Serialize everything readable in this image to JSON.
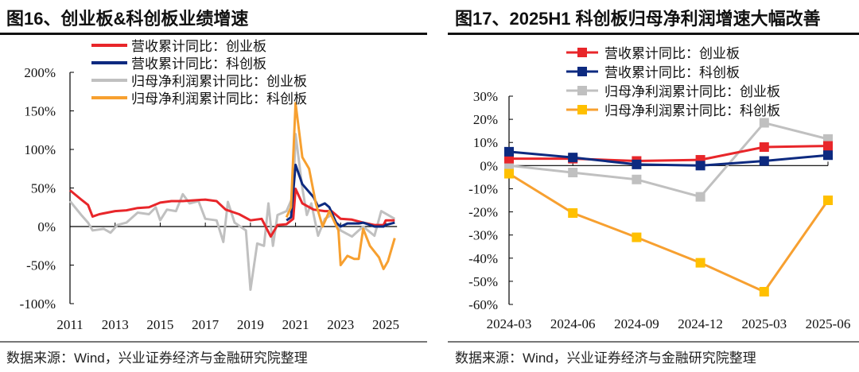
{
  "left": {
    "title": "图16、创业板&科创板业绩增速",
    "source": "数据来源：Wind，兴业证券经济与金融研究院整理"
  },
  "right": {
    "title": "图17、2025H1 科创板归母净利润增速大幅改善",
    "source": "数据来源：Wind，兴业证券经济与金融研究院整理"
  },
  "chart_data": [
    {
      "type": "line",
      "title": "创业板&科创板业绩增速",
      "xlabel": "",
      "ylabel": "",
      "xlim": [
        2011,
        2025.5
      ],
      "ylim": [
        -100,
        200
      ],
      "yticks": [
        200,
        150,
        100,
        50,
        0,
        -50,
        -100
      ],
      "ytick_labels": [
        "200%",
        "150%",
        "100%",
        "50%",
        "0%",
        "-50%",
        "-100%"
      ],
      "xticks": [
        2011,
        2013,
        2015,
        2017,
        2019,
        2021,
        2023,
        2025
      ],
      "xtick_labels": [
        "2011",
        "2013",
        "2015",
        "2017",
        "2019",
        "2021",
        "2023",
        "2025"
      ],
      "legend_position": "top-center",
      "series": [
        {
          "name": "营收累计同比：创业板",
          "color": "#e8262a",
          "x": [
            2011,
            2011.5,
            2011.8,
            2012,
            2012.3,
            2013,
            2013.5,
            2014,
            2014.5,
            2015,
            2015.5,
            2016,
            2016.5,
            2017,
            2017.5,
            2017.9,
            2018.5,
            2019,
            2019.5,
            2019.9,
            2020.2,
            2020.6,
            2020.9,
            2021,
            2021.3,
            2021.8,
            2022.3,
            2022.6,
            2023,
            2023.5,
            2024,
            2024.5,
            2024.9,
            2025,
            2025.4
          ],
          "y": [
            47,
            35,
            28,
            13,
            16,
            20,
            21,
            24,
            25,
            31,
            33,
            33,
            34,
            35,
            33,
            22,
            16,
            8,
            10,
            -13,
            2,
            3,
            10,
            49,
            30,
            22,
            20,
            20,
            10,
            9,
            5,
            2,
            2,
            8,
            8
          ]
        },
        {
          "name": "营收累计同比：科创板",
          "color": "#0d2a80",
          "x": [
            2020.6,
            2020.8,
            2021,
            2021.3,
            2021.8,
            2022,
            2022.3,
            2022.5,
            2022.8,
            2023,
            2023.3,
            2023.8,
            2024,
            2024.5,
            2024.9,
            2025,
            2025.4
          ],
          "y": [
            8,
            12,
            80,
            55,
            38,
            26,
            30,
            25,
            5,
            0,
            4,
            4,
            5,
            0,
            0,
            2,
            5
          ]
        },
        {
          "name": "归母净利润累计同比：创业板",
          "color": "#c0c0c0",
          "x": [
            2011,
            2011.5,
            2011.8,
            2012,
            2012.5,
            2012.8,
            2013.1,
            2013.5,
            2014,
            2014.5,
            2014.8,
            2015,
            2015.3,
            2015.7,
            2016,
            2016.3,
            2016.7,
            2017,
            2017.5,
            2017.8,
            2018,
            2018.3,
            2018.8,
            2019,
            2019.3,
            2019.6,
            2019.8,
            2020,
            2020.2,
            2020.6,
            2020.9,
            2021,
            2021.3,
            2021.5,
            2021.7,
            2022,
            2022.3,
            2022.6,
            2023,
            2023.5,
            2023.8,
            2024,
            2024.5,
            2024.8,
            2025.4
          ],
          "y": [
            33,
            15,
            5,
            -5,
            -3,
            -8,
            2,
            5,
            18,
            16,
            25,
            8,
            22,
            20,
            42,
            30,
            33,
            10,
            8,
            -20,
            32,
            5,
            -5,
            -82,
            -22,
            -25,
            30,
            -25,
            15,
            20,
            40,
            120,
            50,
            15,
            30,
            -12,
            10,
            15,
            -5,
            -13,
            -5,
            0,
            -12,
            20,
            10
          ]
        },
        {
          "name": "归母净利润累计同比：科创板",
          "color": "#f7a030",
          "x": [
            2020.6,
            2020.8,
            2021,
            2021.3,
            2021.6,
            2021.9,
            2022.2,
            2022.5,
            2022.9,
            2023,
            2023.3,
            2023.6,
            2023.8,
            2024,
            2024.3,
            2024.7,
            2024.9,
            2025.1,
            2025.4
          ],
          "y": [
            12,
            25,
            160,
            90,
            75,
            30,
            0,
            20,
            -5,
            -50,
            -38,
            -42,
            -42,
            -3,
            -25,
            -40,
            -55,
            -45,
            -15
          ]
        }
      ]
    },
    {
      "type": "line",
      "title": "2025H1 科创板归母净利润增速大幅改善",
      "xlabel": "",
      "ylabel": "",
      "categories": [
        "2024-03",
        "2024-06",
        "2024-09",
        "2024-12",
        "2025-03",
        "2025-06"
      ],
      "ylim": [
        -60,
        30
      ],
      "yticks": [
        30,
        20,
        10,
        0,
        -10,
        -20,
        -30,
        -40,
        -50,
        -60
      ],
      "ytick_labels": [
        "30%",
        "20%",
        "10%",
        "0%",
        "-10%",
        "-20%",
        "-30%",
        "-40%",
        "-50%",
        "-60%"
      ],
      "legend_position": "top-center",
      "series": [
        {
          "name": "营收累计同比：创业板",
          "color": "#e8262a",
          "values": [
            3,
            3,
            2,
            2.5,
            8,
            8.5
          ]
        },
        {
          "name": "营收累计同比：科创板",
          "color": "#0d2a80",
          "values": [
            6,
            3.5,
            0.5,
            0,
            2,
            4.5
          ]
        },
        {
          "name": "归母净利润累计同比：创业板",
          "color": "#c0c0c0",
          "values": [
            0,
            -3,
            -6,
            -13.5,
            18.5,
            11.5
          ]
        },
        {
          "name": "归母净利润累计同比：科创板",
          "color": "#ffc000",
          "line_color": "#f7a030",
          "values": [
            -3.5,
            -20.5,
            -31,
            -42,
            -54.5,
            -15
          ]
        }
      ]
    }
  ]
}
